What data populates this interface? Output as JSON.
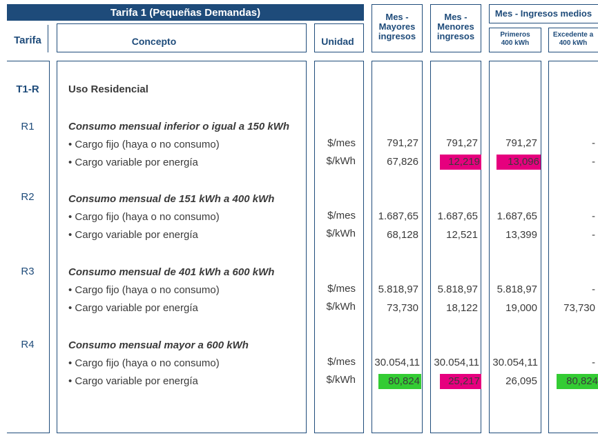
{
  "header": {
    "title": "Tarifa 1 (Pequeñas Demandas)",
    "tarifa": "Tarifa",
    "concepto": "Concepto",
    "unidad": "Unidad",
    "mayores": [
      "Mes -",
      "Mayores",
      "ingresos"
    ],
    "menores": [
      "Mes -",
      "Menores",
      "ingresos"
    ],
    "medios": "Mes - Ingresos medios",
    "primeros": [
      "Primeros",
      "400 kWh"
    ],
    "excedente": [
      "Excedente a",
      "400 kWh"
    ]
  },
  "colors": {
    "navy": "#1e4b7a",
    "pink": "#e6007e",
    "green": "#33cc33"
  },
  "t1r": {
    "code": "T1-R",
    "label": "Uso Residencial"
  },
  "fijo_label": "• Cargo fijo (haya o no consumo)",
  "variable_label": "• Cargo variable por energía",
  "unit_mes": "$/mes",
  "unit_kwh": "$/kWh",
  "sections": [
    {
      "code": "R1",
      "title": "Consumo mensual inferior o igual a 150 kWh",
      "fijo": [
        "791,27",
        "791,27",
        "791,27",
        "-"
      ],
      "variable": [
        "67,826",
        "12,219",
        "13,096",
        "-"
      ]
    },
    {
      "code": "R2",
      "title": "Consumo mensual de 151 kWh a 400 kWh",
      "fijo": [
        "1.687,65",
        "1.687,65",
        "1.687,65",
        "-"
      ],
      "variable": [
        "68,128",
        "12,521",
        "13,399",
        "-"
      ]
    },
    {
      "code": "R3",
      "title": "Consumo mensual de 401 kWh a 600 kWh",
      "fijo": [
        "5.818,97",
        "5.818,97",
        "5.818,97",
        "-"
      ],
      "variable": [
        "73,730",
        "18,122",
        "19,000",
        "73,730"
      ]
    },
    {
      "code": "R4",
      "title": "Consumo mensual mayor a 600 kWh",
      "fijo": [
        "30.054,11",
        "30.054,11",
        "30.054,11",
        "-"
      ],
      "variable": [
        "80,824",
        "25,217",
        "26,095",
        "80,824"
      ]
    }
  ]
}
